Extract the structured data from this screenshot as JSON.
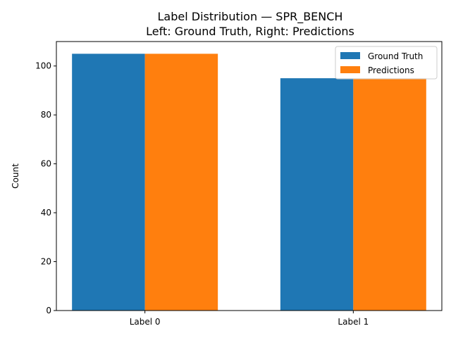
{
  "chart_data": {
    "type": "bar",
    "title": "Label Distribution — SPR_BENCH",
    "subtitle": "Left: Ground Truth, Right: Predictions",
    "xlabel": "",
    "ylabel": "Count",
    "categories": [
      "Label 0",
      "Label 1"
    ],
    "series": [
      {
        "name": "Ground Truth",
        "values": [
          105,
          95
        ],
        "color": "#1f77b4"
      },
      {
        "name": "Predictions",
        "values": [
          105,
          95
        ],
        "color": "#ff7f0e"
      }
    ],
    "ylim": [
      0,
      110
    ],
    "yticks": [
      0,
      20,
      40,
      60,
      80,
      100
    ],
    "grid": false,
    "legend": "top-right"
  }
}
